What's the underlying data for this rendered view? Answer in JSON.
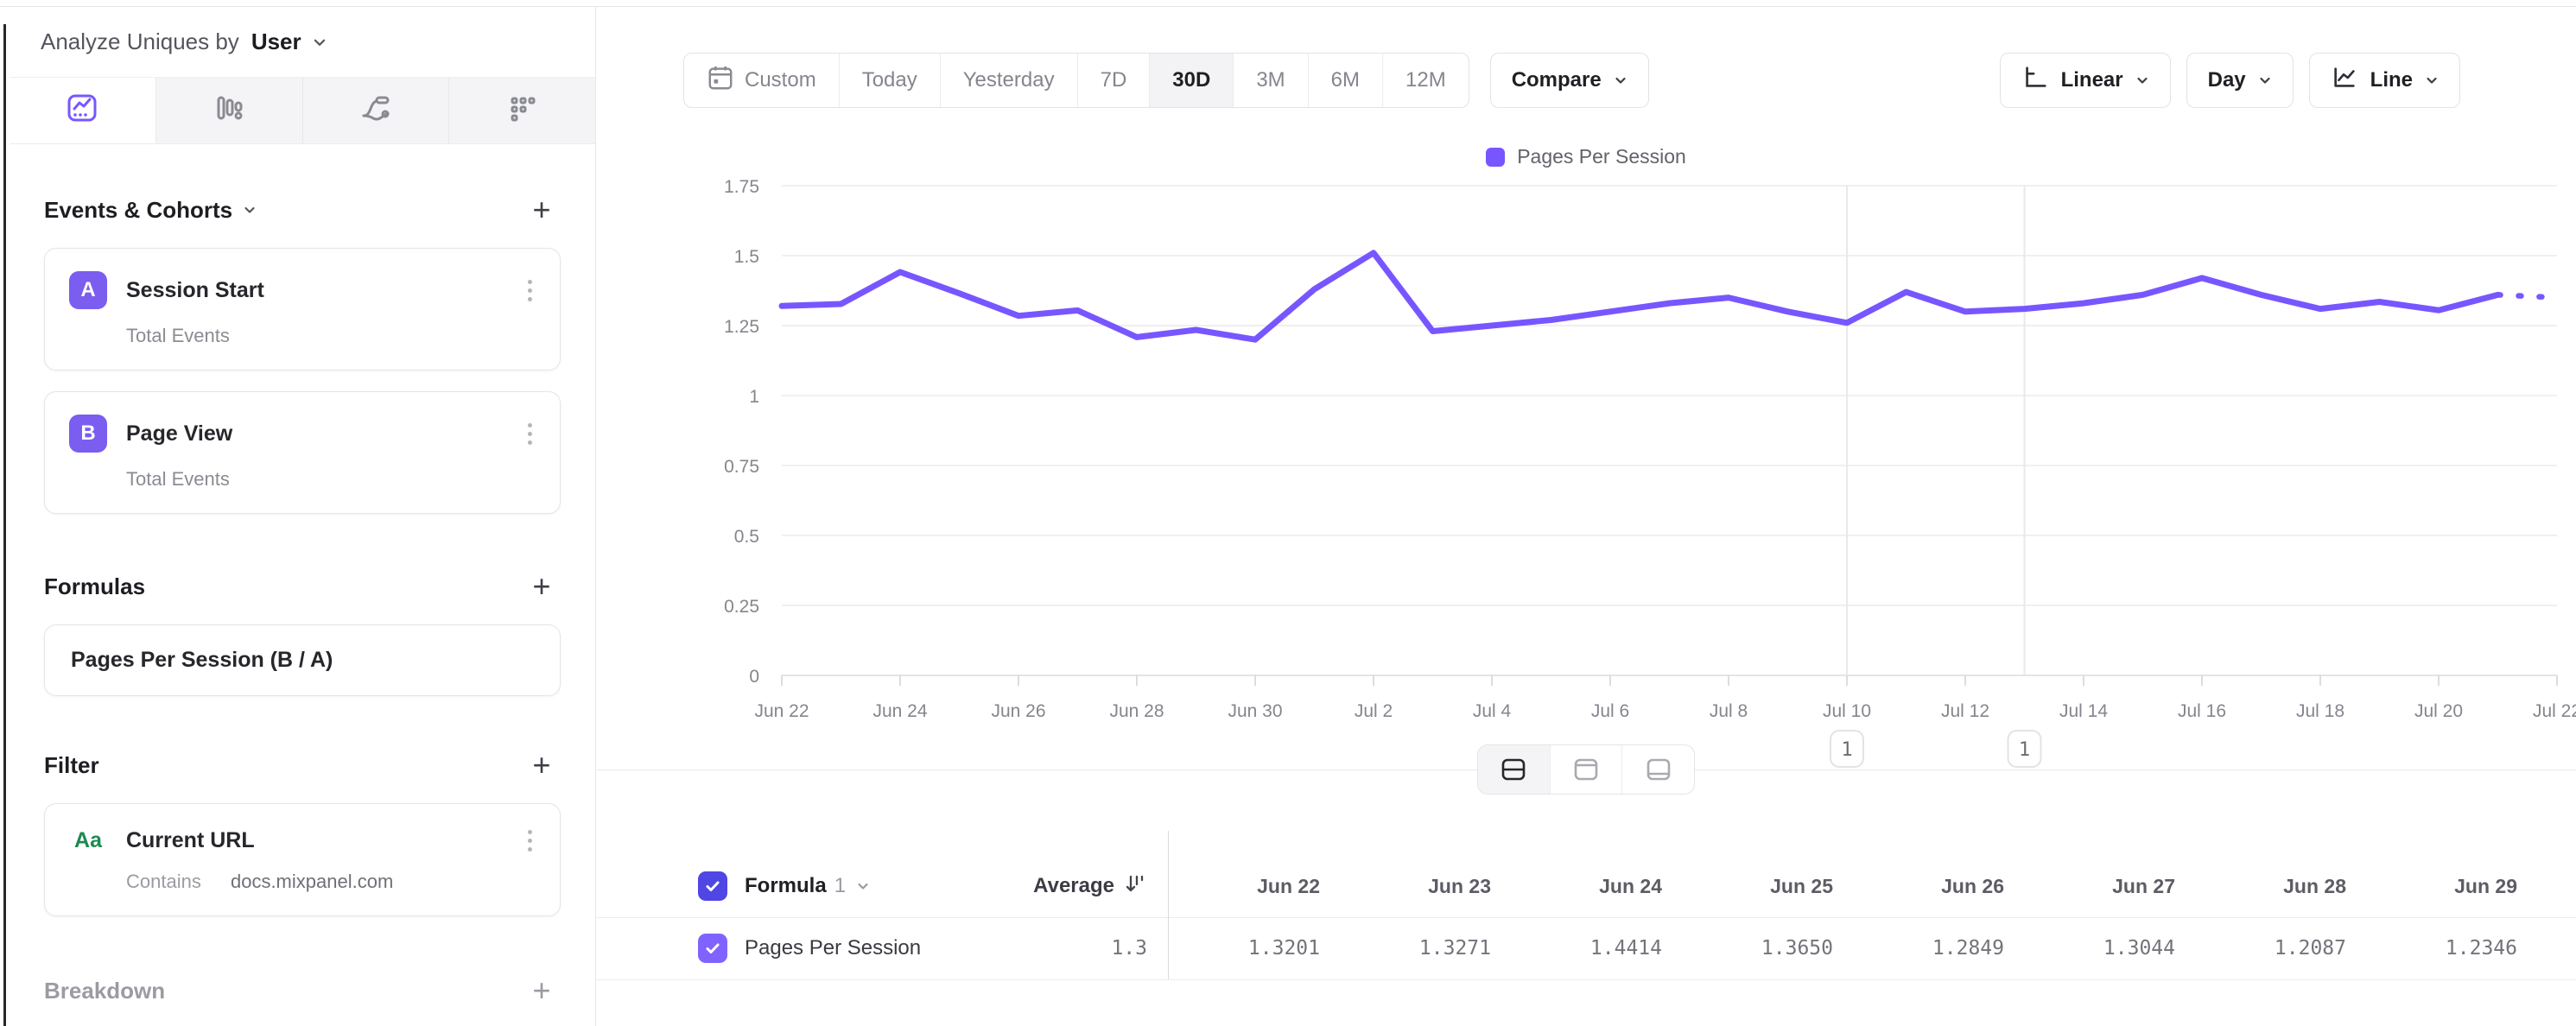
{
  "analyze_bar": {
    "label": "Analyze Uniques by",
    "selected_entity": "User"
  },
  "nav_tabs": [
    {
      "name": "insights-tab",
      "icon": "insights-icon",
      "selected": true
    },
    {
      "name": "funnels-tab",
      "icon": "funnels-icon",
      "selected": false
    },
    {
      "name": "flows-tab",
      "icon": "flows-icon",
      "selected": false
    },
    {
      "name": "retention-tab",
      "icon": "retention-icon",
      "selected": false
    }
  ],
  "sidebar": {
    "events": {
      "title": "Events & Cohorts",
      "add": "+",
      "items": [
        {
          "badge": "A",
          "title": "Session Start",
          "subtitle": "Total Events"
        },
        {
          "badge": "B",
          "title": "Page View",
          "subtitle": "Total Events"
        }
      ]
    },
    "formulas": {
      "title": "Formulas",
      "add": "+",
      "items": [
        {
          "title": "Pages Per Session (B / A)"
        }
      ]
    },
    "filter": {
      "title": "Filter",
      "add": "+",
      "items": [
        {
          "type_badge": "Aa",
          "title": "Current URL",
          "operator": "Contains",
          "value": "docs.mixpanel.com"
        }
      ]
    },
    "breakdown": {
      "title": "Breakdown",
      "add": "+"
    }
  },
  "toolbar": {
    "ranges": [
      "Custom",
      "Today",
      "Yesterday",
      "7D",
      "30D",
      "3M",
      "6M",
      "12M"
    ],
    "selected_range": "30D",
    "compare": "Compare",
    "scale": "Linear",
    "granularity": "Day",
    "chart_type": "Line"
  },
  "chart_data": {
    "type": "line",
    "x": [
      "Jun 22",
      "Jun 23",
      "Jun 24",
      "Jun 25",
      "Jun 26",
      "Jun 27",
      "Jun 28",
      "Jun 29",
      "Jun 30",
      "Jul 1",
      "Jul 2",
      "Jul 3",
      "Jul 4",
      "Jul 5",
      "Jul 6",
      "Jul 7",
      "Jul 8",
      "Jul 9",
      "Jul 10",
      "Jul 11",
      "Jul 12",
      "Jul 13",
      "Jul 14",
      "Jul 15",
      "Jul 16",
      "Jul 17",
      "Jul 18",
      "Jul 19",
      "Jul 20",
      "Jul 21",
      "Jul 22"
    ],
    "series": [
      {
        "name": "Pages Per Session",
        "color": "#7856ff",
        "dotted_from_index": 29,
        "values": [
          1.3201,
          1.3271,
          1.4414,
          1.365,
          1.2849,
          1.3044,
          1.2087,
          1.2346,
          1.2,
          1.38,
          1.51,
          1.23,
          1.25,
          1.27,
          1.3,
          1.33,
          1.35,
          1.3,
          1.26,
          1.37,
          1.3,
          1.31,
          1.33,
          1.36,
          1.42,
          1.36,
          1.31,
          1.335,
          1.305,
          1.36,
          1.35
        ]
      }
    ],
    "ylim": [
      0,
      1.75
    ],
    "yticks": [
      {
        "v": 0,
        "label": "0"
      },
      {
        "v": 0.25,
        "label": "0.25"
      },
      {
        "v": 0.5,
        "label": "0.5"
      },
      {
        "v": 0.75,
        "label": "0.75"
      },
      {
        "v": 1,
        "label": "1"
      },
      {
        "v": 1.25,
        "label": "1.25"
      },
      {
        "v": 1.5,
        "label": "1.5"
      },
      {
        "v": 1.75,
        "label": "1.75"
      }
    ],
    "xtick_every": 2,
    "grid": "horizontal",
    "legend": "Pages Per Session",
    "legend_position": "top-center",
    "annotations": [
      {
        "x_index": 18,
        "x_label": "Jul 10",
        "count": "1"
      },
      {
        "x_index": 21,
        "x_label": "Jul 13",
        "count": "1"
      }
    ]
  },
  "table": {
    "header": {
      "formula": "Formula",
      "formula_index": "1",
      "average": "Average"
    },
    "date_columns": [
      "Jun 22",
      "Jun 23",
      "Jun 24",
      "Jun 25",
      "Jun 26",
      "Jun 27",
      "Jun 28",
      "Jun 29"
    ],
    "rows": [
      {
        "checked": true,
        "name": "Pages Per Session",
        "average": "1.3",
        "values": [
          "1.3201",
          "1.3271",
          "1.4414",
          "1.3650",
          "1.2849",
          "1.3044",
          "1.2087",
          "1.2346"
        ]
      }
    ]
  },
  "colors": {
    "accent": "#7856ff",
    "badge_purple": "#7b5df0",
    "checkbox_header": "#5046e4",
    "checkbox_row": "#8063ff",
    "filter_type_green": "#1d8a51",
    "grid_line": "#ebebee",
    "annotation_line": "#e9e9ec",
    "axis_text": "#85858d"
  }
}
